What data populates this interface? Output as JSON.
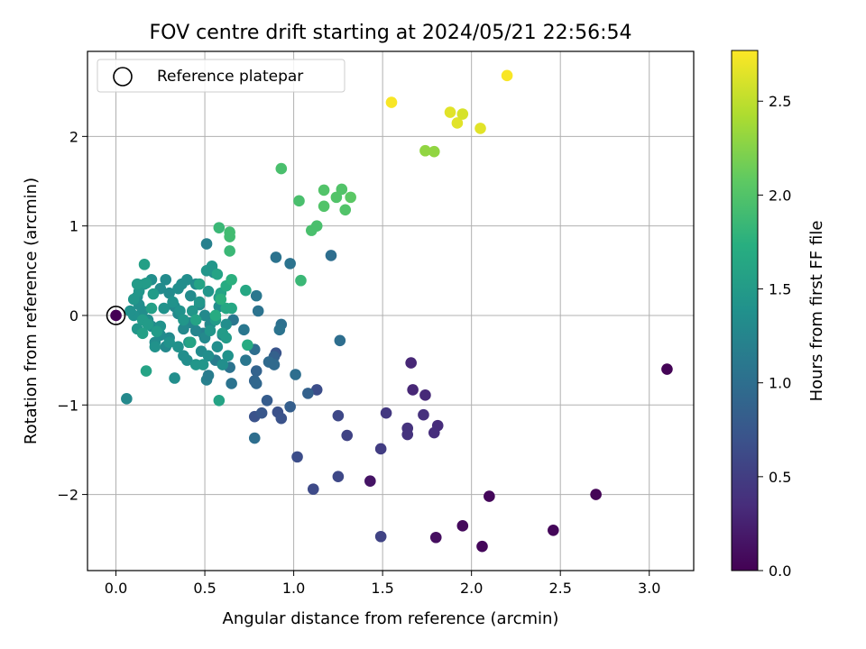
{
  "chart_data": {
    "type": "scatter",
    "title": "FOV centre drift starting at 2024/05/21 22:56:54",
    "xlabel": "Angular distance from reference (arcmin)",
    "ylabel": "Rotation from reference (arcmin)",
    "xlim": [
      -0.16,
      3.25
    ],
    "ylim": [
      -2.85,
      2.95
    ],
    "x_ticks": [
      0.0,
      0.5,
      1.0,
      1.5,
      2.0,
      2.5,
      3.0
    ],
    "x_tick_labels": [
      "0.0",
      "0.5",
      "1.0",
      "1.5",
      "2.0",
      "2.5",
      "3.0"
    ],
    "y_ticks": [
      -2,
      -1,
      0,
      1,
      2
    ],
    "y_tick_labels": [
      "−2",
      "−1",
      "0",
      "1",
      "2"
    ],
    "grid": true,
    "legend": {
      "placement": "top-left",
      "entries": [
        "Reference platepar"
      ]
    },
    "reference_point": {
      "x": 0.0,
      "y": 0.0
    },
    "colorbar": {
      "label": "Hours from first FF file",
      "colormap": "viridis",
      "range": [
        0.0,
        2.77
      ],
      "ticks": [
        0.0,
        0.5,
        1.0,
        1.5,
        2.0,
        2.5
      ],
      "tick_labels": [
        "0.0",
        "0.5",
        "1.0",
        "1.5",
        "2.0",
        "2.5"
      ]
    },
    "series": [
      {
        "points": [
          [
            3.1,
            -0.6,
            0.02
          ],
          [
            2.7,
            -2.0,
            0.03
          ],
          [
            2.46,
            -2.4,
            0.04
          ],
          [
            2.1,
            -2.02,
            0.05
          ],
          [
            2.06,
            -2.58,
            0.05
          ],
          [
            1.95,
            -2.35,
            0.07
          ],
          [
            1.8,
            -2.48,
            0.1
          ],
          [
            1.43,
            -1.85,
            0.15
          ],
          [
            1.66,
            -0.53,
            0.3
          ],
          [
            1.67,
            -0.83,
            0.3
          ],
          [
            1.74,
            -0.89,
            0.32
          ],
          [
            1.81,
            -1.23,
            0.35
          ],
          [
            1.79,
            -1.31,
            0.36
          ],
          [
            1.73,
            -1.11,
            0.38
          ],
          [
            1.64,
            -1.26,
            0.4
          ],
          [
            1.64,
            -1.33,
            0.4
          ],
          [
            1.52,
            -1.09,
            0.45
          ],
          [
            1.49,
            -1.49,
            0.5
          ],
          [
            1.49,
            -2.47,
            0.55
          ],
          [
            1.3,
            -1.34,
            0.55
          ],
          [
            1.25,
            -1.12,
            0.6
          ],
          [
            1.25,
            -1.8,
            0.6
          ],
          [
            1.11,
            -1.94,
            0.62
          ],
          [
            1.13,
            -0.83,
            0.65
          ],
          [
            1.02,
            -1.58,
            0.65
          ],
          [
            0.91,
            -1.08,
            0.68
          ],
          [
            0.93,
            -1.15,
            0.7
          ],
          [
            0.9,
            -0.42,
            0.72
          ],
          [
            0.78,
            -1.13,
            0.7
          ],
          [
            0.82,
            -1.09,
            0.75
          ],
          [
            0.85,
            -0.95,
            0.8
          ],
          [
            0.98,
            -1.02,
            0.82
          ],
          [
            1.08,
            -0.87,
            0.85
          ],
          [
            0.89,
            -0.46,
            0.85
          ],
          [
            0.79,
            -0.62,
            0.88
          ],
          [
            0.78,
            -0.73,
            0.9
          ],
          [
            0.79,
            -0.76,
            0.92
          ],
          [
            0.86,
            -0.52,
            0.95
          ],
          [
            0.89,
            -0.55,
            0.95
          ],
          [
            0.78,
            -0.38,
            1.0
          ],
          [
            0.78,
            -1.37,
            1.0
          ],
          [
            1.01,
            -0.66,
            1.0
          ],
          [
            0.93,
            -0.1,
            1.02
          ],
          [
            0.92,
            -0.16,
            1.05
          ],
          [
            0.8,
            0.05,
            1.05
          ],
          [
            0.9,
            0.65,
            1.05
          ],
          [
            0.98,
            0.58,
            1.05
          ],
          [
            1.21,
            0.67,
            1.0
          ],
          [
            1.26,
            -0.28,
            1.0
          ],
          [
            0.79,
            0.22,
            1.1
          ],
          [
            0.64,
            -0.58,
            1.05
          ],
          [
            0.65,
            -0.76,
            1.05
          ],
          [
            0.73,
            -0.5,
            1.1
          ],
          [
            0.72,
            -0.16,
            1.1
          ],
          [
            0.66,
            -0.05,
            1.1
          ],
          [
            0.6,
            -0.22,
            1.15
          ],
          [
            0.56,
            -0.5,
            1.15
          ],
          [
            0.51,
            -0.72,
            1.2
          ],
          [
            0.52,
            -0.67,
            1.15
          ],
          [
            0.51,
            0.8,
            1.2
          ],
          [
            0.06,
            -0.93,
            1.3
          ],
          [
            0.55,
            -0.05,
            1.2
          ],
          [
            0.49,
            -0.2,
            1.2
          ],
          [
            0.45,
            -0.17,
            1.25
          ],
          [
            0.42,
            -0.08,
            1.25
          ],
          [
            0.38,
            -0.15,
            1.3
          ],
          [
            0.35,
            0.02,
            1.3
          ],
          [
            0.33,
            0.1,
            1.3
          ],
          [
            0.3,
            -0.25,
            1.3
          ],
          [
            0.28,
            -0.35,
            1.3
          ],
          [
            0.25,
            -0.22,
            1.32
          ],
          [
            0.22,
            -0.3,
            1.33
          ],
          [
            0.2,
            -0.12,
            1.33
          ],
          [
            0.18,
            -0.05,
            1.35
          ],
          [
            0.15,
            0.05,
            1.35
          ],
          [
            0.13,
            0.12,
            1.35
          ],
          [
            0.1,
            0.0,
            1.38
          ],
          [
            0.08,
            0.05,
            1.38
          ],
          [
            0.12,
            0.21,
            1.35
          ],
          [
            0.16,
            0.35,
            1.35
          ],
          [
            0.2,
            0.4,
            1.35
          ],
          [
            0.25,
            0.3,
            1.32
          ],
          [
            0.28,
            0.4,
            1.32
          ],
          [
            0.3,
            0.25,
            1.32
          ],
          [
            0.33,
            -0.7,
            1.35
          ],
          [
            0.35,
            0.3,
            1.35
          ],
          [
            0.37,
            0.35,
            1.35
          ],
          [
            0.38,
            -0.45,
            1.35
          ],
          [
            0.4,
            -0.5,
            1.35
          ],
          [
            0.4,
            0.4,
            1.35
          ],
          [
            0.42,
            0.22,
            1.32
          ],
          [
            0.45,
            0.35,
            1.32
          ],
          [
            0.47,
            0.12,
            1.32
          ],
          [
            0.48,
            -0.4,
            1.32
          ],
          [
            0.5,
            -0.25,
            1.3
          ],
          [
            0.5,
            0.0,
            1.3
          ],
          [
            0.52,
            -0.45,
            1.35
          ],
          [
            0.53,
            -0.1,
            1.3
          ],
          [
            0.55,
            0.48,
            1.35
          ],
          [
            0.57,
            -0.35,
            1.35
          ],
          [
            0.58,
            0.1,
            1.35
          ],
          [
            0.6,
            -0.55,
            1.35
          ],
          [
            0.62,
            -0.1,
            1.35
          ],
          [
            0.63,
            -0.45,
            1.4
          ],
          [
            0.22,
            -0.35,
            1.4
          ],
          [
            0.25,
            -0.12,
            1.4
          ],
          [
            0.27,
            0.08,
            1.4
          ],
          [
            0.3,
            -0.3,
            1.4
          ],
          [
            0.32,
            0.15,
            1.4
          ],
          [
            0.35,
            -0.35,
            1.4
          ],
          [
            0.36,
            0.05,
            1.4
          ],
          [
            0.38,
            -0.05,
            1.45
          ],
          [
            0.41,
            -0.3,
            1.45
          ],
          [
            0.43,
            0.05,
            1.45
          ],
          [
            0.45,
            -0.55,
            1.45
          ],
          [
            0.47,
            0.15,
            1.45
          ],
          [
            0.49,
            -0.55,
            1.45
          ],
          [
            0.51,
            0.5,
            1.45
          ],
          [
            0.52,
            0.27,
            1.45
          ],
          [
            0.53,
            -0.17,
            1.45
          ],
          [
            0.54,
            0.55,
            1.45
          ],
          [
            0.56,
            -0.05,
            1.5
          ],
          [
            0.58,
            0.2,
            1.5
          ],
          [
            0.6,
            -0.2,
            1.5
          ],
          [
            0.62,
            -0.25,
            1.5
          ],
          [
            0.1,
            0.18,
            1.45
          ],
          [
            0.12,
            -0.15,
            1.45
          ],
          [
            0.13,
            0.27,
            1.45
          ],
          [
            0.15,
            -0.05,
            1.5
          ],
          [
            0.17,
            0.36,
            1.5
          ],
          [
            0.18,
            -0.1,
            1.5
          ],
          [
            0.21,
            0.24,
            1.5
          ],
          [
            0.23,
            -0.18,
            1.5
          ],
          [
            0.16,
            0.57,
            1.55
          ],
          [
            0.2,
            0.08,
            1.55
          ],
          [
            0.58,
            -0.95,
            1.6
          ],
          [
            0.17,
            -0.62,
            1.6
          ],
          [
            0.42,
            -0.3,
            1.6
          ],
          [
            0.45,
            -0.05,
            1.6
          ],
          [
            0.47,
            0.35,
            1.6
          ],
          [
            0.57,
            0.46,
            1.6
          ],
          [
            0.59,
            0.25,
            1.6
          ],
          [
            0.62,
            0.08,
            1.65
          ],
          [
            0.65,
            0.08,
            1.65
          ],
          [
            0.15,
            -0.2,
            1.55
          ],
          [
            0.12,
            0.35,
            1.5
          ],
          [
            0.73,
            0.28,
            1.65
          ],
          [
            0.74,
            -0.33,
            1.7
          ],
          [
            0.62,
            0.33,
            1.7
          ],
          [
            0.65,
            0.4,
            1.75
          ],
          [
            0.59,
            0.18,
            1.75
          ],
          [
            0.56,
            0.0,
            1.7
          ],
          [
            0.58,
            0.98,
            1.85
          ],
          [
            0.64,
            0.93,
            1.9
          ],
          [
            0.64,
            0.88,
            1.9
          ],
          [
            0.64,
            0.72,
            1.85
          ],
          [
            1.04,
            0.39,
            1.85
          ],
          [
            0.93,
            1.64,
            1.95
          ],
          [
            1.03,
            1.28,
            1.95
          ],
          [
            1.1,
            0.95,
            1.95
          ],
          [
            1.13,
            1.0,
            1.95
          ],
          [
            1.17,
            1.4,
            2.0
          ],
          [
            1.17,
            1.22,
            2.0
          ],
          [
            1.24,
            1.32,
            2.0
          ],
          [
            1.27,
            1.41,
            2.0
          ],
          [
            1.29,
            1.18,
            2.0
          ],
          [
            1.32,
            1.32,
            2.05
          ],
          [
            1.74,
            1.84,
            2.3
          ],
          [
            1.79,
            1.83,
            2.3
          ],
          [
            1.55,
            2.38,
            2.75
          ],
          [
            1.88,
            2.27,
            2.65
          ],
          [
            1.92,
            2.15,
            2.65
          ],
          [
            1.95,
            2.25,
            2.6
          ],
          [
            2.05,
            2.09,
            2.65
          ],
          [
            2.2,
            2.68,
            2.75
          ]
        ]
      }
    ]
  }
}
